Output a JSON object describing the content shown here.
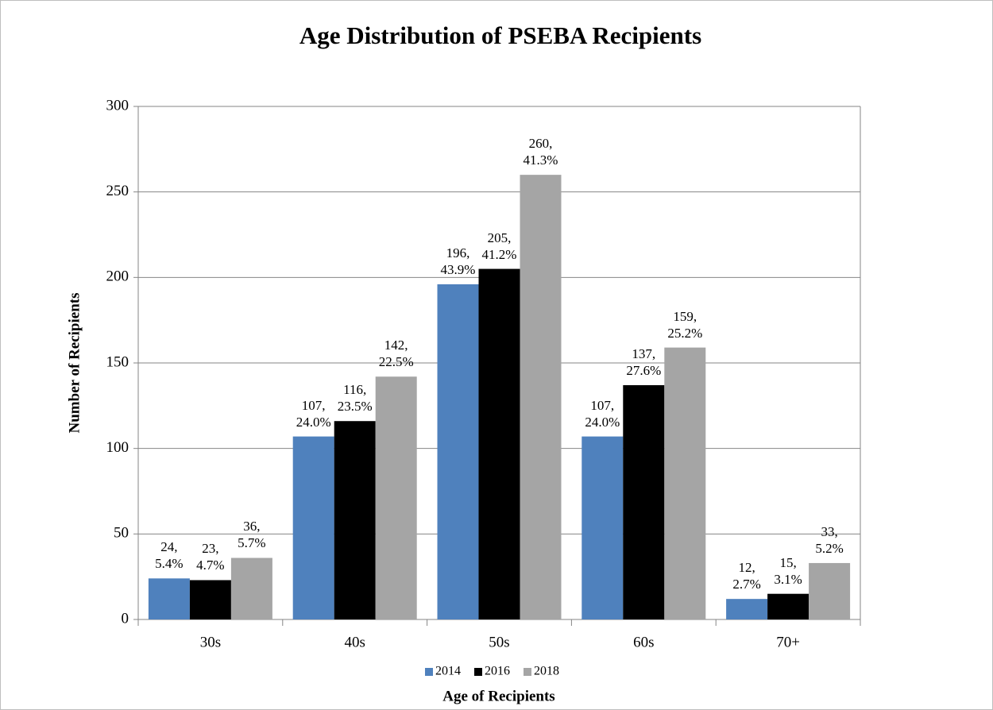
{
  "chart_data": {
    "type": "bar",
    "title": "Age Distribution of PSEBA Recipients",
    "x_label": "Age of Recipients",
    "y_label": "Number of Recipients",
    "categories": [
      "30s",
      "40s",
      "50s",
      "60s",
      "70+"
    ],
    "series": [
      {
        "name": "2014",
        "color": "#4f81bd",
        "values": [
          24,
          107,
          196,
          107,
          12
        ],
        "value_labels": [
          "24, 5.4%",
          "107, 24.0%",
          "196, 43.9%",
          "107, 24.0%",
          "12, 2.7%"
        ]
      },
      {
        "name": "2016",
        "color": "#000000",
        "values": [
          23,
          116,
          205,
          137,
          15
        ],
        "value_labels": [
          "23, 4.7%",
          "116, 23.5%",
          "205, 41.2%",
          "137, 27.6%",
          "15, 3.1%"
        ]
      },
      {
        "name": "2018",
        "color": "#a5a5a5",
        "values": [
          36,
          142,
          260,
          159,
          33
        ],
        "value_labels": [
          "36, 5.7%",
          "142, 22.5%",
          "260, 41.3%",
          "159, 25.2%",
          "33, 5.2%"
        ]
      }
    ],
    "ylim": [
      0,
      300
    ],
    "yticks": [
      0,
      50,
      100,
      150,
      200,
      250,
      300
    ],
    "grid": true,
    "legend": "bottom"
  }
}
